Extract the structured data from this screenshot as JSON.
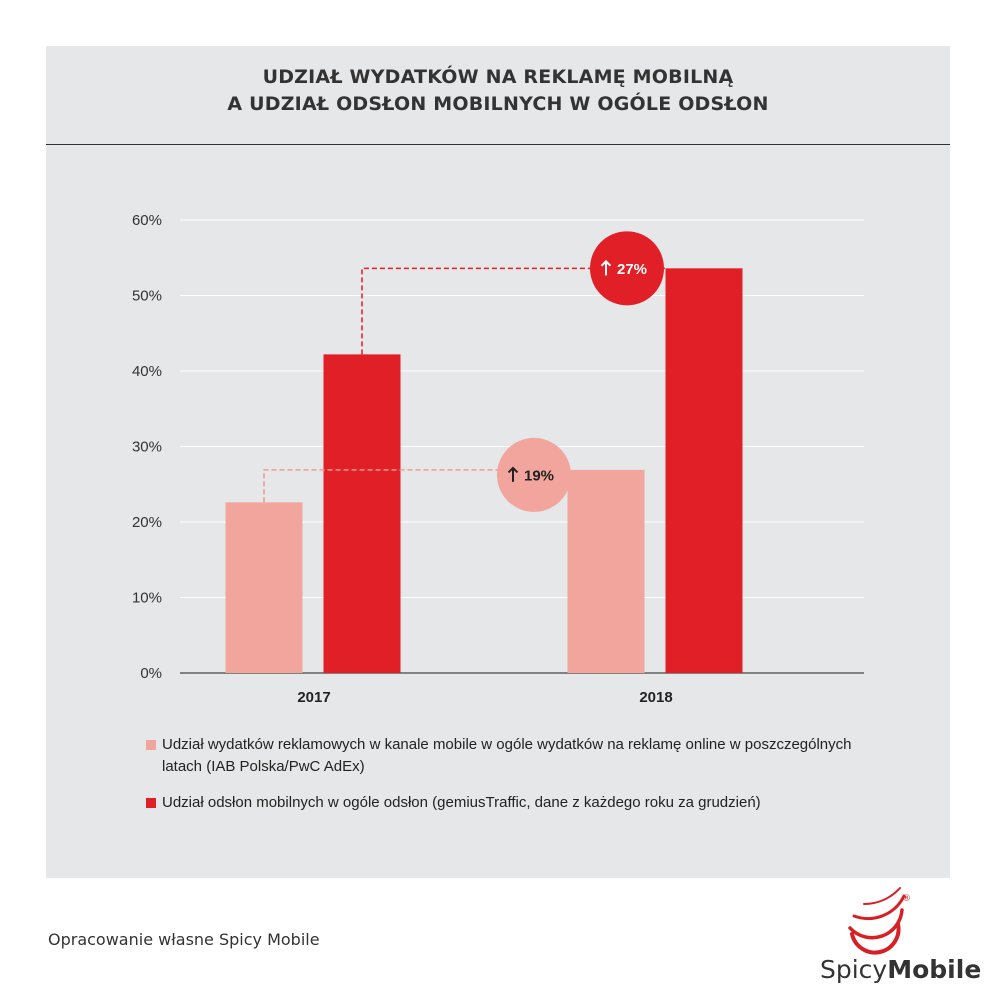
{
  "title_line1": "UDZIAŁ WYDATKÓW NA REKLAMĘ MOBILNĄ",
  "title_line2": "A UDZIAŁ ODSŁON MOBILNYCH W OGÓLE ODSŁON",
  "chart_data": {
    "type": "bar",
    "categories": [
      "2017",
      "2018"
    ],
    "series": [
      {
        "name": "Udział wydatków reklamowych w kanale mobile w ogóle wydatków na reklamę online w poszczególnych latach (IAB Polska/PwC AdEx)",
        "values": [
          22.6,
          26.9
        ],
        "color": "#f2a59d"
      },
      {
        "name": "Udział odsłon mobilnych w ogóle odsłon (gemiusTraffic, dane z każdego roku za grudzień)",
        "values": [
          42.2,
          53.6
        ],
        "color": "#e11f26"
      }
    ],
    "ylim": [
      0,
      60
    ],
    "yticks": [
      "0%",
      "10%",
      "20%",
      "30%",
      "40%",
      "50%",
      "60%"
    ],
    "annotations": [
      {
        "series": 0,
        "text": "19%",
        "color": "#f2a59d"
      },
      {
        "series": 1,
        "text": "27%",
        "color": "#e11f26"
      }
    ],
    "grid": true
  },
  "legend": {
    "item1_line1": "Udział wydatków reklamowych w kanale mobile w ogóle wydatków na reklamę online w poszczególnych",
    "item1_line2": "latach (IAB Polska/PwC AdEx)",
    "item2": "Udział odsłon mobilnych w ogóle odsłon (gemiusTraffic, dane z każdego roku za grudzień)"
  },
  "footer_note": "Opracowanie własne Spicy Mobile",
  "logo": {
    "part1": "Spicy",
    "part2": "Mobile",
    "reg": "®",
    "accent": "#d71f26"
  }
}
